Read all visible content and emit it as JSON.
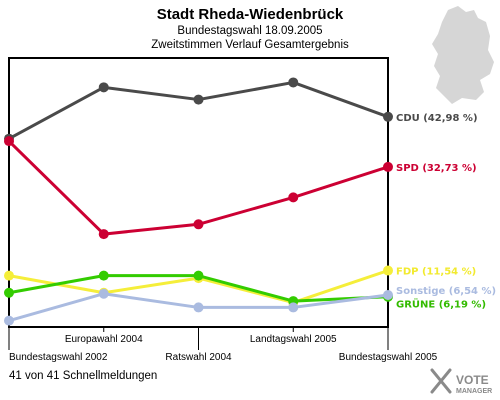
{
  "chart_data": {
    "type": "line",
    "title": "Stadt Rheda-Wiedenbrück",
    "subtitle1": "Bundestagswahl 18.09.2005",
    "subtitle2": "Zweitstimmen Verlauf Gesamtergebnis",
    "categories": [
      "Bundestagswahl 2002",
      "Europawahl 2004",
      "Ratswahl 2004",
      "Landtagswahl 2005",
      "Bundestagswahl 2005"
    ],
    "ylim": [
      0,
      55
    ],
    "series": [
      {
        "name": "CDU",
        "label": "CDU (42,98 %)",
        "color": "#4a4a4a",
        "values": [
          38.5,
          49.0,
          46.5,
          50.0,
          42.98
        ]
      },
      {
        "name": "SPD",
        "label": "SPD (32,73 %)",
        "color": "#cc0033",
        "values": [
          38.0,
          19.0,
          21.0,
          26.5,
          32.73
        ]
      },
      {
        "name": "FDP",
        "label": "FDP (11,54 %)",
        "color": "#f5ee3a",
        "values": [
          10.5,
          7.0,
          10.0,
          5.0,
          11.54
        ]
      },
      {
        "name": "GRÜNE",
        "label": "GRÜNE (6,19 %)",
        "color": "#33cc00",
        "values": [
          7.0,
          10.5,
          10.5,
          5.3,
          6.19
        ]
      },
      {
        "name": "Sonstige",
        "label": "Sonstige (6,54 %)",
        "color": "#aabbe0",
        "values": [
          1.3,
          6.8,
          4.0,
          4.0,
          6.54
        ]
      }
    ]
  },
  "footer_text": "41 von 41 Schnellmeldungen",
  "logo": {
    "line1": "VOTE",
    "line2": "MANAGER"
  }
}
